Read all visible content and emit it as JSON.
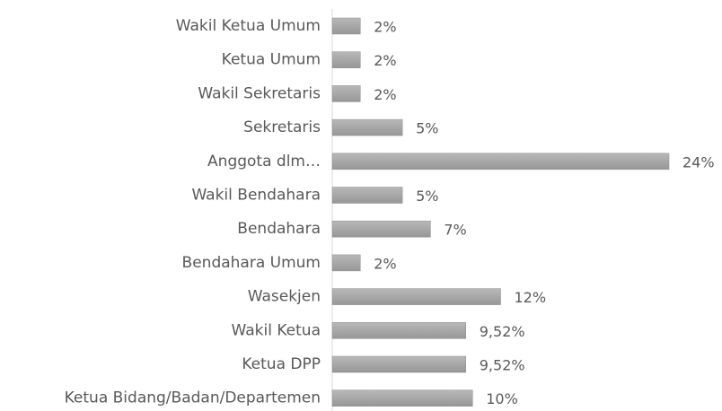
{
  "chart_data": {
    "type": "bar",
    "orientation": "horizontal",
    "categories": [
      "Wakil Ketua Umum",
      "Ketua Umum",
      "Wakil Sekretaris",
      "Sekretaris",
      "Anggota dlm…",
      "Wakil Bendahara",
      "Bendahara",
      "Bendahara Umum",
      "Wasekjen",
      "Wakil Ketua",
      "Ketua DPP",
      "Ketua Bidang/Badan/Departemen"
    ],
    "values": [
      2,
      2,
      2,
      5,
      24,
      5,
      7,
      2,
      12,
      9.52,
      9.52,
      10
    ],
    "value_labels": [
      "2%",
      "2%",
      "2%",
      "5%",
      "24%",
      "5%",
      "7%",
      "2%",
      "12%",
      "9,52%",
      "9,52%",
      "10%"
    ],
    "color": "#a5a5a5"
  }
}
